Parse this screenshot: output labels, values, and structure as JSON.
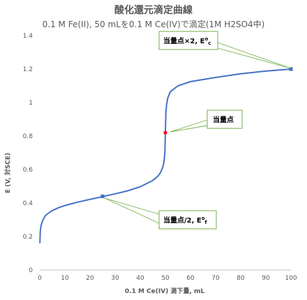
{
  "chart_data": {
    "type": "line",
    "title": "酸化還元滴定曲線",
    "subtitle": "0.1 M Fe(II), 50 mLを0.1 M Ce(IV)で滴定(1M H2SO4中)",
    "xlabel": "0.1 M Ce(IV) 滴下量, mL",
    "ylabel": "E (V, 対SCE)",
    "xlim": [
      0,
      100
    ],
    "ylim": [
      0,
      1.4
    ],
    "xticks": [
      0,
      10,
      20,
      30,
      40,
      50,
      60,
      70,
      80,
      90,
      100
    ],
    "yticks": [
      0,
      0.2,
      0.4,
      0.6,
      0.8,
      1.0,
      1.2,
      1.4
    ],
    "ytick_labels": [
      "0",
      "0.2",
      "0.4",
      "0.6",
      "0.8",
      "1",
      "1.2",
      "1.4"
    ],
    "grid": false,
    "series": [
      {
        "color": "#4472c4",
        "points": [
          [
            0.05,
            0.16
          ],
          [
            0.2,
            0.23
          ],
          [
            0.5,
            0.265
          ],
          [
            1,
            0.29
          ],
          [
            2,
            0.32
          ],
          [
            3,
            0.335
          ],
          [
            5,
            0.355
          ],
          [
            7.5,
            0.372
          ],
          [
            10,
            0.385
          ],
          [
            15,
            0.405
          ],
          [
            20,
            0.422
          ],
          [
            25,
            0.438
          ],
          [
            30,
            0.455
          ],
          [
            35,
            0.473
          ],
          [
            40,
            0.497
          ],
          [
            45,
            0.535
          ],
          [
            47,
            0.56
          ],
          [
            48,
            0.58
          ],
          [
            49,
            0.615
          ],
          [
            49.5,
            0.65
          ],
          [
            49.8,
            0.7
          ],
          [
            50,
            0.82
          ],
          [
            50.2,
            0.94
          ],
          [
            50.5,
            0.99
          ],
          [
            51,
            1.03
          ],
          [
            52,
            1.065
          ],
          [
            55,
            1.1
          ],
          [
            60,
            1.125
          ],
          [
            70,
            1.15
          ],
          [
            80,
            1.172
          ],
          [
            90,
            1.188
          ],
          [
            100,
            1.2
          ]
        ]
      }
    ],
    "markers": [
      {
        "x": 25,
        "y": 0.44,
        "color": "#4472c4",
        "shape": "square"
      },
      {
        "x": 50,
        "y": 0.82,
        "color": "#ff0000",
        "shape": "circle"
      },
      {
        "x": 100,
        "y": 1.2,
        "color": "#4472c4",
        "shape": "square"
      }
    ],
    "annotations": [
      {
        "text": "当量点×2, E",
        "sup": "o",
        "sub": "c",
        "x": 100,
        "y": 1.2
      },
      {
        "text": "当量点",
        "sup": "",
        "sub": "",
        "x": 50,
        "y": 0.82
      },
      {
        "text": "当量点/2, E",
        "sup": "o",
        "sub": "f",
        "x": 25,
        "y": 0.44
      }
    ]
  }
}
